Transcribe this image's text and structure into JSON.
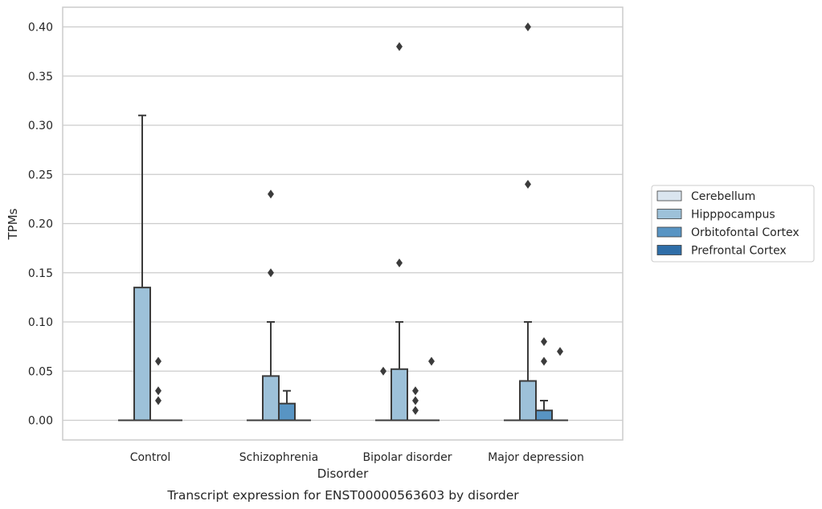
{
  "chart_data": {
    "type": "box",
    "xlabel": "Disorder",
    "ylabel": "TPMs",
    "caption": "Transcript expression for ENST00000563603 by disorder",
    "ylim": [
      -0.02,
      0.42
    ],
    "yticks": [
      0.0,
      0.05,
      0.1,
      0.15,
      0.2,
      0.25,
      0.3,
      0.35,
      0.4
    ],
    "ytick_labels": [
      "0.00",
      "0.05",
      "0.10",
      "0.15",
      "0.20",
      "0.25",
      "0.30",
      "0.35",
      "0.40"
    ],
    "grid": "y",
    "legend_position": "right",
    "categories": [
      "Control",
      "Schizophrenia",
      "Bipolar disorder",
      "Major depression"
    ],
    "series": [
      {
        "name": "Cerebellum",
        "color": "#dae5ef",
        "boxes": [
          {
            "q1": 0,
            "median": 0,
            "q3": 0,
            "whisker_low": 0,
            "whisker_high": 0,
            "outliers": []
          },
          {
            "q1": 0,
            "median": 0,
            "q3": 0,
            "whisker_low": 0,
            "whisker_high": 0,
            "outliers": []
          },
          {
            "q1": 0,
            "median": 0,
            "q3": 0,
            "whisker_low": 0,
            "whisker_high": 0,
            "outliers": []
          },
          {
            "q1": 0,
            "median": 0,
            "q3": 0,
            "whisker_low": 0,
            "whisker_high": 0,
            "outliers": []
          }
        ]
      },
      {
        "name": "Hipppocampus",
        "color": "#9dc1d9",
        "boxes": [
          {
            "q1": 0,
            "median": 0,
            "q3": 0.135,
            "whisker_low": 0,
            "whisker_high": 0.31,
            "outliers": []
          },
          {
            "q1": 0,
            "median": 0,
            "q3": 0.045,
            "whisker_low": 0,
            "whisker_high": 0.1,
            "outliers": [
              0.15,
              0.23
            ]
          },
          {
            "q1": 0,
            "median": 0,
            "q3": 0.052,
            "whisker_low": 0,
            "whisker_high": 0.1,
            "outliers": [
              0.16,
              0.38
            ]
          },
          {
            "q1": 0,
            "median": 0,
            "q3": 0.04,
            "whisker_low": 0,
            "whisker_high": 0.1,
            "outliers": [
              0.24,
              0.4
            ]
          }
        ]
      },
      {
        "name": "Orbitofontal Cortex",
        "color": "#5894c3",
        "boxes": [
          {
            "q1": 0,
            "median": 0,
            "q3": 0,
            "whisker_low": 0,
            "whisker_high": 0,
            "outliers": [
              0.02,
              0.03,
              0.06
            ]
          },
          {
            "q1": 0,
            "median": 0,
            "q3": 0.017,
            "whisker_low": 0,
            "whisker_high": 0.03,
            "outliers": []
          },
          {
            "q1": 0,
            "median": 0,
            "q3": 0,
            "whisker_low": 0,
            "whisker_high": 0,
            "outliers": [
              0.01,
              0.02,
              0.03
            ]
          },
          {
            "q1": 0,
            "median": 0,
            "q3": 0.01,
            "whisker_low": 0,
            "whisker_high": 0.02,
            "outliers": [
              0.06,
              0.08
            ]
          }
        ]
      },
      {
        "name": "Prefrontal Cortex",
        "color": "#2f6ea8",
        "boxes": [
          {
            "q1": 0,
            "median": 0,
            "q3": 0,
            "whisker_low": 0,
            "whisker_high": 0,
            "outliers": []
          },
          {
            "q1": 0,
            "median": 0,
            "q3": 0,
            "whisker_low": 0,
            "whisker_high": 0,
            "outliers": []
          },
          {
            "q1": 0,
            "median": 0,
            "q3": 0,
            "whisker_low": 0,
            "whisker_high": 0,
            "outliers": [
              0.06
            ]
          },
          {
            "q1": 0,
            "median": 0,
            "q3": 0,
            "whisker_low": 0,
            "whisker_high": 0,
            "outliers": [
              0.07
            ]
          }
        ]
      }
    ],
    "extra_outliers": [
      {
        "category_index": 2,
        "series_index": 0,
        "value": 0.05
      }
    ]
  }
}
